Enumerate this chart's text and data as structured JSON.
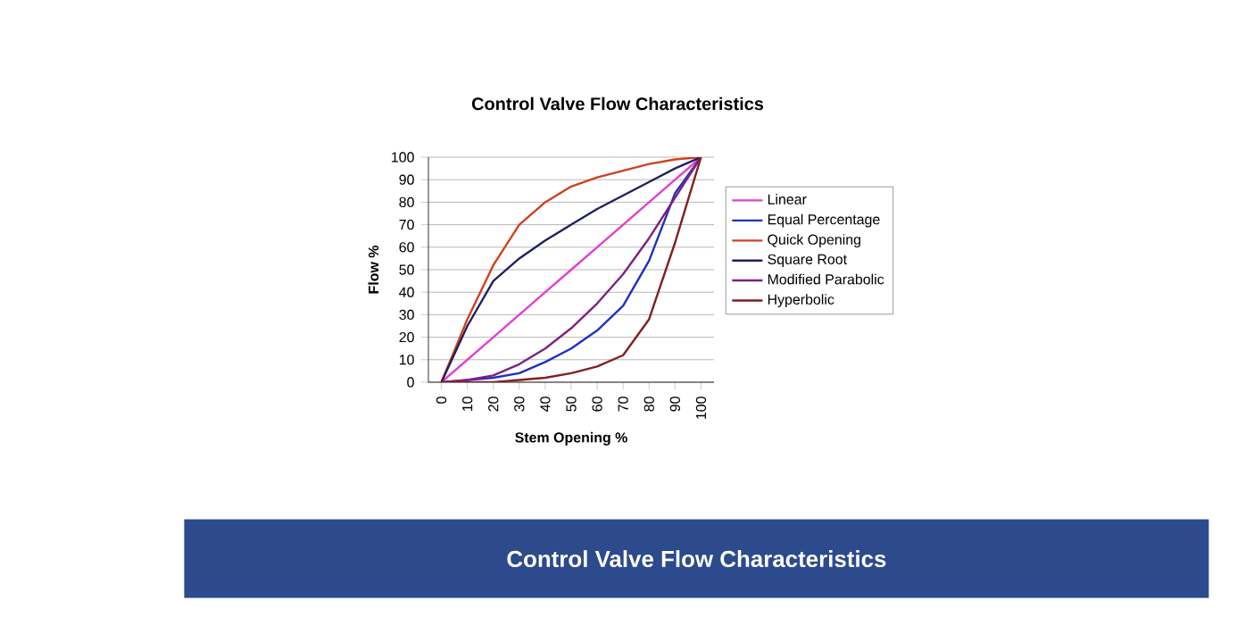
{
  "chart_data": {
    "type": "line",
    "title": "Control Valve Flow Characteristics",
    "xlabel": "Stem Opening %",
    "ylabel": "Flow %",
    "categories": [
      "0",
      "10",
      "20",
      "30",
      "40",
      "50",
      "60",
      "70",
      "80",
      "90",
      "100"
    ],
    "series": [
      {
        "name": "Linear",
        "color": "#e040d0",
        "values": [
          0,
          10,
          20,
          30,
          40,
          50,
          60,
          70,
          80,
          90,
          100
        ]
      },
      {
        "name": "Equal Percentage",
        "color": "#2030c0",
        "values": [
          0,
          1,
          2,
          4,
          9,
          15,
          23,
          34,
          54,
          84,
          100
        ]
      },
      {
        "name": "Quick Opening",
        "color": "#d04020",
        "values": [
          0,
          28,
          52,
          70,
          80,
          87,
          91,
          94,
          97,
          99,
          100
        ]
      },
      {
        "name": "Square Root",
        "color": "#202060",
        "values": [
          0,
          25,
          45,
          55,
          63,
          70,
          77,
          83,
          89,
          95,
          100
        ]
      },
      {
        "name": "Modified Parabolic",
        "color": "#802080",
        "values": [
          0,
          1,
          3,
          8,
          15,
          24,
          35,
          48,
          64,
          82,
          100
        ]
      },
      {
        "name": "Hyperbolic",
        "color": "#802020",
        "values": [
          0,
          0,
          0,
          1,
          2,
          4,
          7,
          12,
          28,
          62,
          100
        ]
      }
    ],
    "ylim": [
      0,
      100
    ],
    "yticks": [
      0,
      10,
      20,
      30,
      40,
      50,
      60,
      70,
      80,
      90,
      100
    ],
    "grid": "y",
    "legend": "right",
    "marker": "none",
    "line_style": "solid",
    "annotations": [
      "Control Valve Flow Characteristics"
    ]
  }
}
